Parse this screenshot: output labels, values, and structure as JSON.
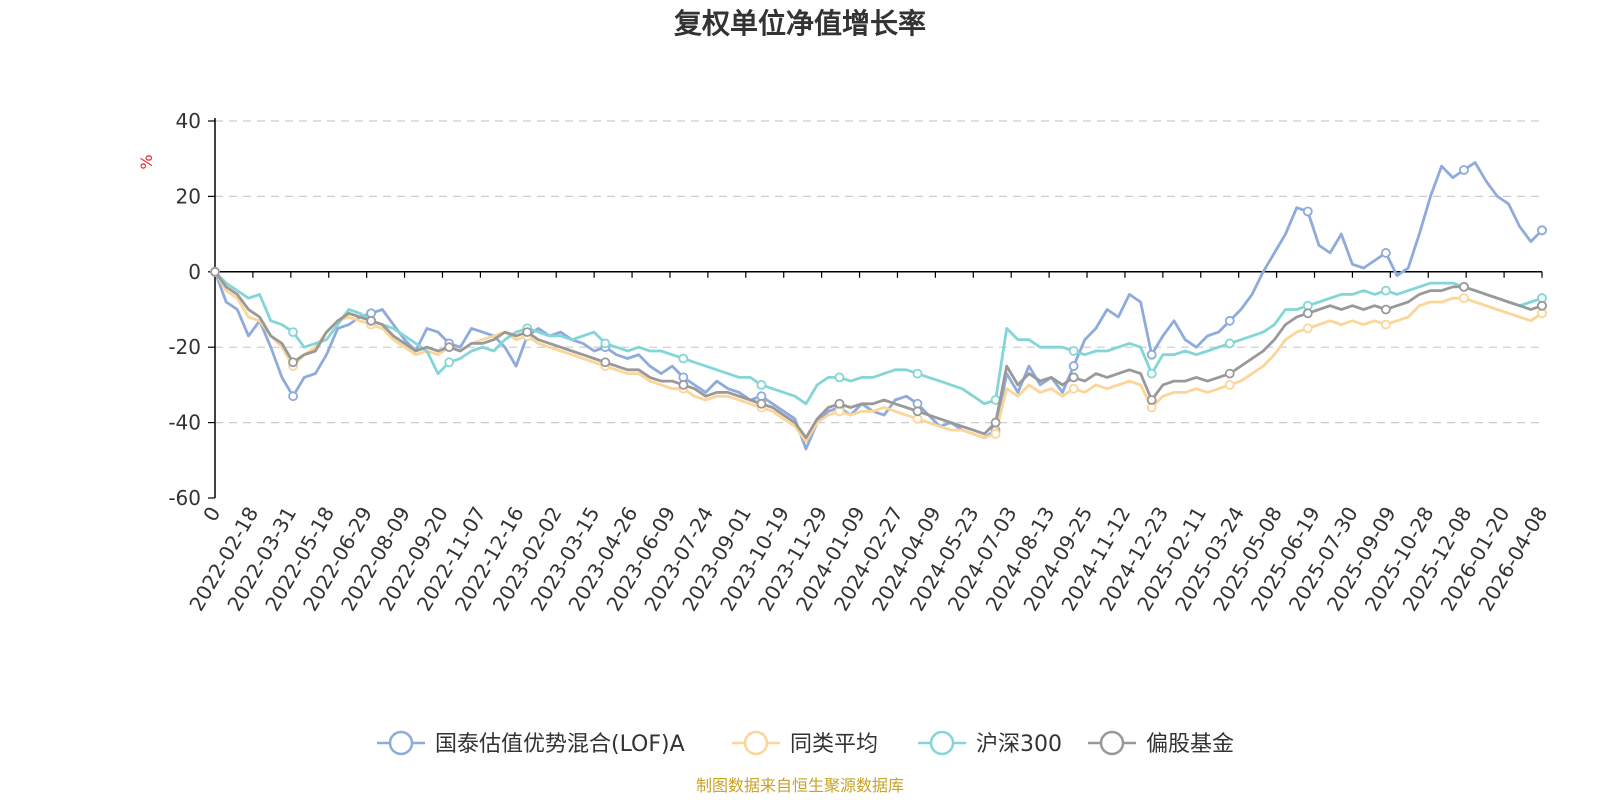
{
  "chart_data": {
    "type": "line",
    "title": "复权单位净值增长率",
    "ylabel": "%",
    "ylim": [
      -60,
      40
    ],
    "yticks": [
      40,
      20,
      0,
      -20,
      -40,
      -60
    ],
    "x_tick_labels": [
      "0",
      "2022-02-18",
      "2022-03-31",
      "2022-05-18",
      "2022-06-29",
      "2022-08-09",
      "2022-09-20",
      "2022-11-07",
      "2022-12-16",
      "2023-02-02",
      "2023-03-15",
      "2023-04-26",
      "2023-06-09",
      "2023-07-24",
      "2023-09-01",
      "2023-10-19",
      "2023-11-29",
      "2024-01-09",
      "2024-02-27",
      "2024-04-09",
      "2024-05-23",
      "2024-07-03",
      "2024-08-13",
      "2024-09-25",
      "2024-11-12",
      "2024-12-23",
      "2025-02-11",
      "2025-03-24",
      "2025-05-08",
      "2025-06-19",
      "2025-07-30",
      "2025-09-09",
      "2025-10-28",
      "2025-12-08",
      "2026-01-20",
      "2026-04-08"
    ],
    "grid": true,
    "legend_position": "bottom",
    "series": [
      {
        "name": "国泰估值优势混合(LOF)A",
        "color": "#8eabdc",
        "values": [
          0,
          -8,
          -10,
          -17,
          -13,
          -20,
          -28,
          -33,
          -28,
          -27,
          -22,
          -15,
          -14,
          -12,
          -11,
          -10,
          -14,
          -18,
          -21,
          -15,
          -16,
          -19,
          -20,
          -15,
          -16,
          -17,
          -20,
          -25,
          -17,
          -15,
          -17,
          -16,
          -18,
          -19,
          -21,
          -20,
          -22,
          -23,
          -22,
          -25,
          -27,
          -25,
          -28,
          -30,
          -32,
          -29,
          -31,
          -32,
          -34,
          -33,
          -35,
          -37,
          -39,
          -47,
          -40,
          -37,
          -36,
          -38,
          -35,
          -37,
          -38,
          -34,
          -33,
          -35,
          -38,
          -41,
          -40,
          -42,
          -43,
          -44,
          -42,
          -27,
          -32,
          -25,
          -30,
          -28,
          -32,
          -25,
          -18,
          -15,
          -10,
          -12,
          -6,
          -8,
          -22,
          -17,
          -13,
          -18,
          -20,
          -17,
          -16,
          -13,
          -10,
          -6,
          0,
          5,
          10,
          17,
          16,
          7,
          5,
          10,
          2,
          1,
          3,
          5,
          -1,
          1,
          10,
          20,
          28,
          25,
          27,
          29,
          24,
          20,
          18,
          12,
          8,
          11
        ]
      },
      {
        "name": "同类平均",
        "color": "#fcd598",
        "values": [
          0,
          -5,
          -7,
          -12,
          -13,
          -17,
          -20,
          -25,
          -22,
          -20,
          -16,
          -13,
          -12,
          -13,
          -14,
          -15,
          -18,
          -20,
          -22,
          -21,
          -22,
          -20,
          -21,
          -19,
          -18,
          -17,
          -16,
          -18,
          -17,
          -19,
          -20,
          -21,
          -22,
          -23,
          -24,
          -25,
          -26,
          -27,
          -27,
          -29,
          -30,
          -31,
          -31,
          -33,
          -34,
          -33,
          -33,
          -34,
          -35,
          -36,
          -37,
          -39,
          -41,
          -45,
          -40,
          -38,
          -37,
          -38,
          -37,
          -37,
          -36,
          -37,
          -38,
          -39,
          -40,
          -41,
          -42,
          -42,
          -43,
          -44,
          -43,
          -31,
          -33,
          -30,
          -32,
          -31,
          -33,
          -31,
          -32,
          -30,
          -31,
          -30,
          -29,
          -30,
          -36,
          -33,
          -32,
          -32,
          -31,
          -32,
          -31,
          -30,
          -29,
          -27,
          -25,
          -22,
          -18,
          -16,
          -15,
          -14,
          -13,
          -14,
          -13,
          -14,
          -13,
          -14,
          -13,
          -12,
          -9,
          -8,
          -8,
          -7,
          -7,
          -8,
          -9,
          -10,
          -11,
          -12,
          -13,
          -11
        ]
      },
      {
        "name": "沪深300",
        "color": "#84d6d6",
        "values": [
          0,
          -3,
          -5,
          -7,
          -6,
          -13,
          -14,
          -16,
          -20,
          -19,
          -18,
          -14,
          -10,
          -11,
          -13,
          -14,
          -15,
          -17,
          -19,
          -21,
          -27,
          -24,
          -23,
          -21,
          -20,
          -21,
          -18,
          -16,
          -15,
          -16,
          -17,
          -17,
          -18,
          -17,
          -16,
          -19,
          -20,
          -21,
          -20,
          -21,
          -21,
          -22,
          -23,
          -24,
          -25,
          -26,
          -27,
          -28,
          -28,
          -30,
          -31,
          -32,
          -33,
          -35,
          -30,
          -28,
          -28,
          -29,
          -28,
          -28,
          -27,
          -26,
          -26,
          -27,
          -28,
          -29,
          -30,
          -31,
          -33,
          -35,
          -34,
          -15,
          -18,
          -18,
          -20,
          -20,
          -20,
          -21,
          -22,
          -21,
          -21,
          -20,
          -19,
          -20,
          -27,
          -22,
          -22,
          -21,
          -22,
          -21,
          -20,
          -19,
          -18,
          -17,
          -16,
          -14,
          -10,
          -10,
          -9,
          -8,
          -7,
          -6,
          -6,
          -5,
          -6,
          -5,
          -6,
          -5,
          -4,
          -3,
          -3,
          -3,
          -4,
          -5,
          -6,
          -7,
          -8,
          -9,
          -8,
          -7
        ]
      },
      {
        "name": "偏股基金",
        "color": "#999999",
        "values": [
          0,
          -4,
          -6,
          -10,
          -12,
          -17,
          -19,
          -24,
          -22,
          -21,
          -16,
          -13,
          -11,
          -12,
          -13,
          -14,
          -17,
          -19,
          -21,
          -20,
          -21,
          -20,
          -21,
          -19,
          -19,
          -18,
          -16,
          -17,
          -16,
          -18,
          -19,
          -20,
          -21,
          -22,
          -23,
          -24,
          -25,
          -26,
          -26,
          -28,
          -29,
          -29,
          -30,
          -31,
          -33,
          -32,
          -32,
          -33,
          -34,
          -35,
          -36,
          -38,
          -40,
          -44,
          -39,
          -36,
          -35,
          -36,
          -35,
          -35,
          -34,
          -35,
          -36,
          -37,
          -38,
          -39,
          -40,
          -41,
          -42,
          -43,
          -40,
          -25,
          -30,
          -27,
          -29,
          -28,
          -30,
          -28,
          -29,
          -27,
          -28,
          -27,
          -26,
          -27,
          -34,
          -30,
          -29,
          -29,
          -28,
          -29,
          -28,
          -27,
          -25,
          -23,
          -21,
          -18,
          -14,
          -12,
          -11,
          -10,
          -9,
          -10,
          -9,
          -10,
          -9,
          -10,
          -9,
          -8,
          -6,
          -5,
          -5,
          -4,
          -4,
          -5,
          -6,
          -7,
          -8,
          -9,
          -10,
          -9
        ]
      }
    ]
  },
  "source_text": "制图数据来自恒生聚源数据库",
  "colors": {
    "axis": "#000000",
    "grid": "#cccccc",
    "text": "#333333",
    "unit": "#e8262b",
    "source": "#c9a227"
  }
}
